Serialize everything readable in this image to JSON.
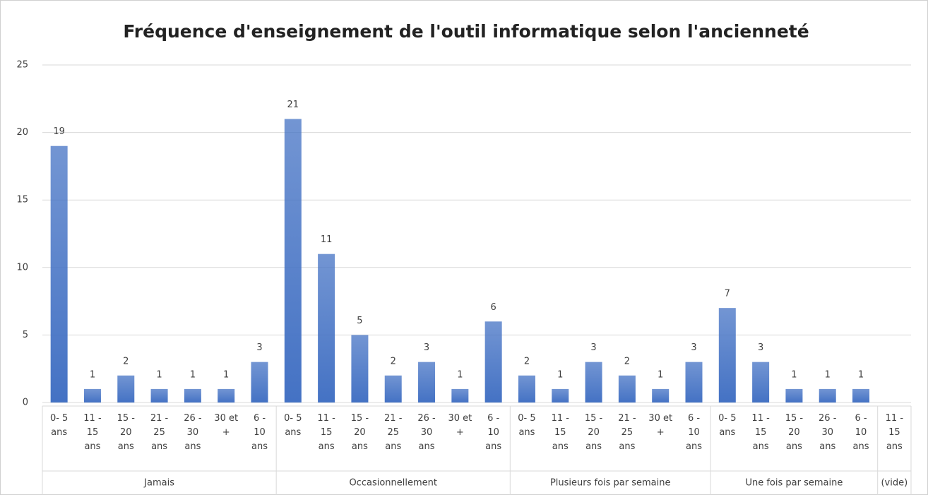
{
  "chart_data": {
    "type": "bar",
    "title": "Fréquence d'enseignement de l'outil informatique selon l'ancienneté",
    "color": "#4472c4",
    "ylim": [
      0,
      25
    ],
    "yticks": [
      0,
      5,
      10,
      15,
      20,
      25
    ],
    "grid": true,
    "groups": [
      {
        "name": "Jamais",
        "categories": [
          "0- 5 ans",
          "11 - 15 ans",
          "15 - 20 ans",
          "21 - 25 ans",
          "26 - 30 ans",
          "30 et +",
          "6 - 10 ans"
        ],
        "values": [
          19,
          1,
          2,
          1,
          1,
          1,
          3
        ]
      },
      {
        "name": "Occasionnellement",
        "categories": [
          "0- 5 ans",
          "11 - 15 ans",
          "15 - 20 ans",
          "21 - 25 ans",
          "26 - 30 ans",
          "30 et +",
          "6 - 10 ans"
        ],
        "values": [
          21,
          11,
          5,
          2,
          3,
          1,
          6
        ]
      },
      {
        "name": "Plusieurs fois par semaine",
        "categories": [
          "0- 5 ans",
          "11 - 15 ans",
          "15 - 20 ans",
          "21 - 25 ans",
          "30 et +",
          "6 - 10 ans"
        ],
        "values": [
          2,
          1,
          3,
          2,
          1,
          3
        ]
      },
      {
        "name": "Une fois par semaine",
        "categories": [
          "0- 5 ans",
          "11 - 15 ans",
          "15 - 20 ans",
          "26 - 30 ans",
          "6 - 10 ans"
        ],
        "values": [
          7,
          3,
          1,
          1,
          1
        ]
      },
      {
        "name": "(vide)",
        "categories": [
          "11 - 15 ans"
        ],
        "values": [
          null
        ]
      }
    ]
  }
}
